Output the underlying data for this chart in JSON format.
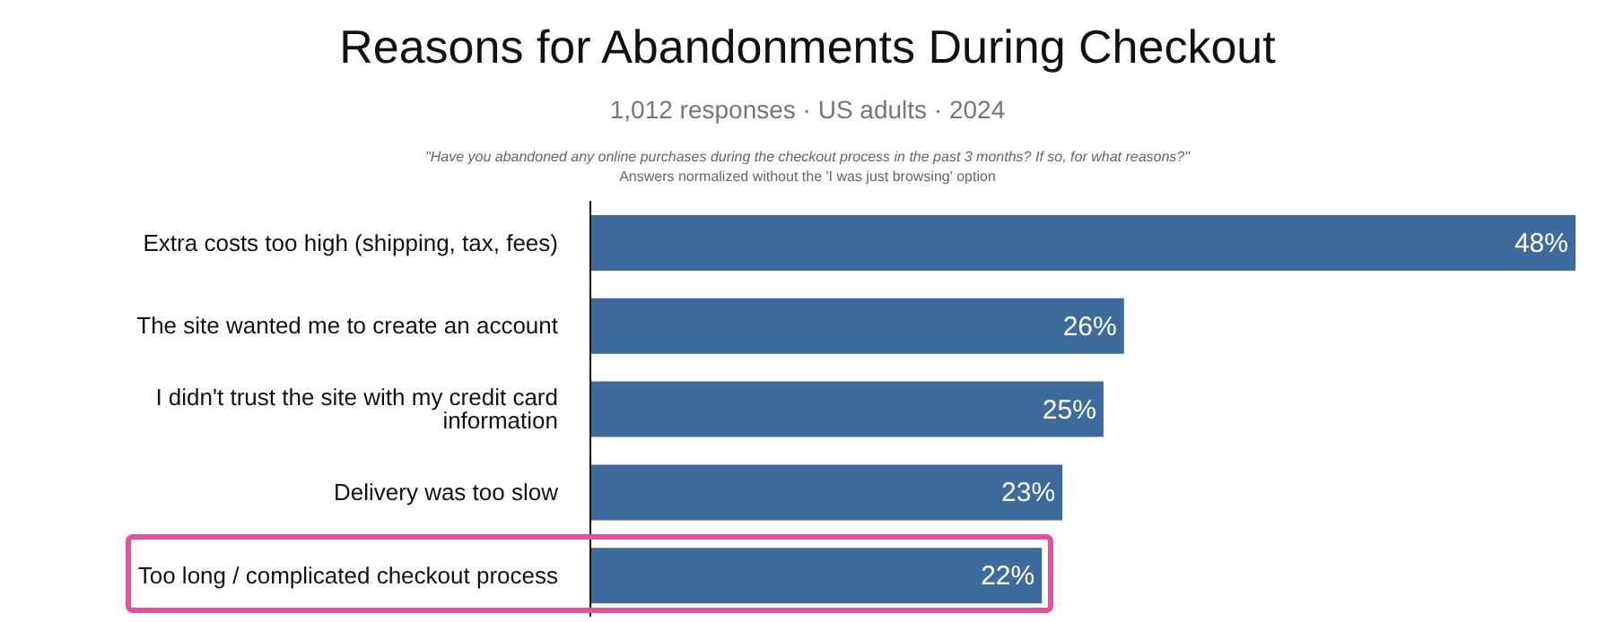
{
  "chart_data": {
    "type": "bar",
    "orientation": "horizontal",
    "title": "Reasons for Abandonments During Checkout",
    "subtitle": "1,012 responses · US adults · 2024",
    "annotations": [
      "\"Have you abandoned any online purchases during the checkout process in the past 3 months? If so, for what reasons?\"",
      "Answers normalized without the 'I was just browsing' option"
    ],
    "categories": [
      "Extra costs too high (shipping, tax, fees)",
      "The site wanted me to create an account",
      "I didn't trust the site with my credit card information",
      "Delivery was too slow",
      "Too long / complicated checkout process"
    ],
    "values": [
      48,
      26,
      25,
      23,
      22
    ],
    "value_labels": [
      "48%",
      "26%",
      "25%",
      "23%",
      "22%"
    ],
    "color": "#3d6b9c",
    "xlim": [
      0,
      48
    ],
    "tick_labels": "y",
    "grid": false,
    "legend": false
  }
}
